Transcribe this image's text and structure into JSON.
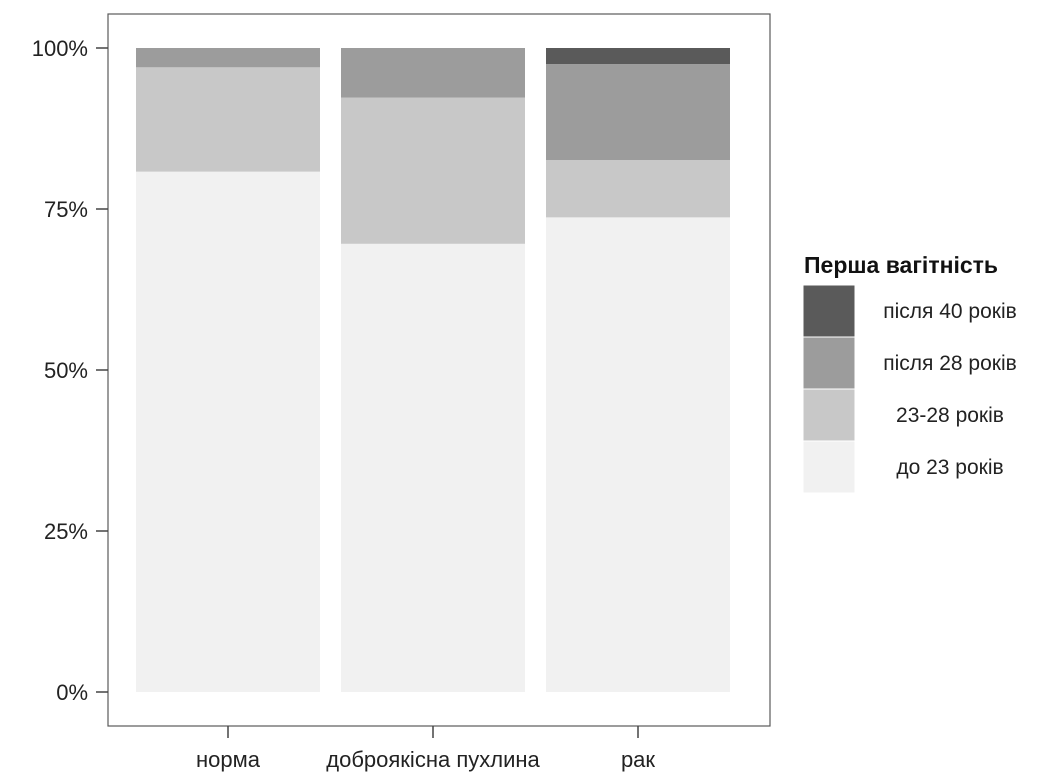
{
  "chart_data": {
    "type": "bar",
    "stacked": true,
    "percent": true,
    "categories": [
      "норма",
      "доброякісна пухлина",
      "рак"
    ],
    "series": [
      {
        "name": "до 23 років",
        "color": "#f1f1f1",
        "values": [
          80.8,
          69.6,
          73.7
        ]
      },
      {
        "name": "23-28 років",
        "color": "#c8c8c8",
        "values": [
          16.2,
          22.7,
          8.9
        ]
      },
      {
        "name": "після 28 років",
        "color": "#9c9c9c",
        "values": [
          3.0,
          7.7,
          14.9
        ]
      },
      {
        "name": "після 40 років",
        "color": "#5a5a5a",
        "values": [
          0.0,
          0.0,
          2.5
        ]
      }
    ],
    "yticks": [
      "0%",
      "25%",
      "50%",
      "75%",
      "100%"
    ],
    "ylim": [
      0,
      100
    ],
    "grid": false,
    "legend": {
      "title": "Перша вагітність",
      "placement": "right",
      "order": [
        "після 40 років",
        "після 28 років",
        "23-28 років",
        "до 23 років"
      ]
    }
  }
}
